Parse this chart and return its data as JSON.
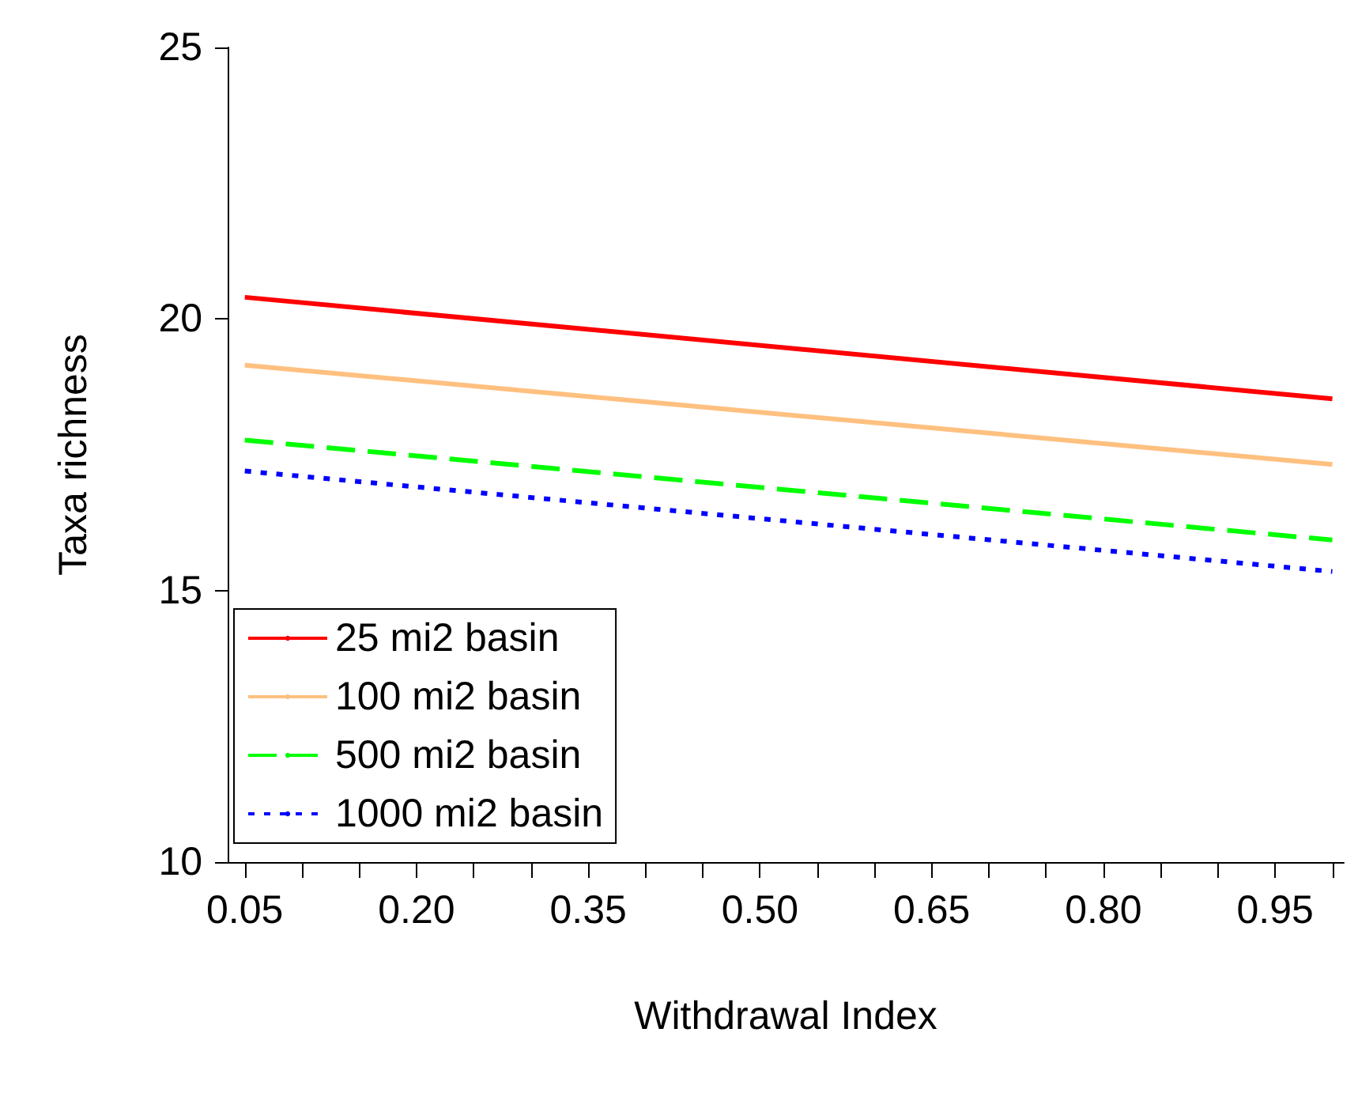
{
  "chart_data": {
    "type": "line",
    "xlabel": "Withdrawal Index",
    "ylabel": "Taxa richness",
    "xlim": [
      0.035,
      1.01
    ],
    "ylim": [
      10,
      25
    ],
    "yticks": [
      10,
      15,
      20,
      25
    ],
    "xticks": [
      0.05,
      {
        "value": 0.1,
        "label": null
      },
      {
        "value": 0.15,
        "label": null
      },
      {
        "value": 0.2,
        "label": "0.20"
      },
      {
        "value": 0.25,
        "label": null
      },
      {
        "value": 0.3,
        "label": null
      },
      0.35,
      {
        "value": 0.4,
        "label": null
      },
      {
        "value": 0.45,
        "label": null
      },
      {
        "value": 0.5,
        "label": "0.50"
      },
      {
        "value": 0.55,
        "label": null
      },
      {
        "value": 0.6,
        "label": null
      },
      0.65,
      {
        "value": 0.7,
        "label": null
      },
      {
        "value": 0.75,
        "label": null
      },
      {
        "value": 0.8,
        "label": "0.80"
      },
      {
        "value": 0.85,
        "label": null
      },
      {
        "value": 0.9,
        "label": null
      },
      0.95,
      {
        "value": 1.0,
        "label": null
      }
    ],
    "x": [
      0.05,
      1.0
    ],
    "grid": false,
    "legend": "bottom left",
    "marker": "none",
    "series": [
      {
        "name": "25 mi2 basin",
        "color": "#ff0000",
        "line_style": "solid",
        "values": [
          20.4,
          18.53
        ]
      },
      {
        "name": "100 mi2 basin",
        "color": "#ffc080",
        "line_style": "solid",
        "values": [
          19.15,
          17.32
        ]
      },
      {
        "name": "500 mi2 basin",
        "color": "#00ff00",
        "line_style": "dashed",
        "values": [
          17.77,
          15.93
        ]
      },
      {
        "name": "1000 mi2 basin",
        "color": "#0000ff",
        "line_style": "dotted",
        "values": [
          17.2,
          15.35
        ]
      }
    ]
  }
}
